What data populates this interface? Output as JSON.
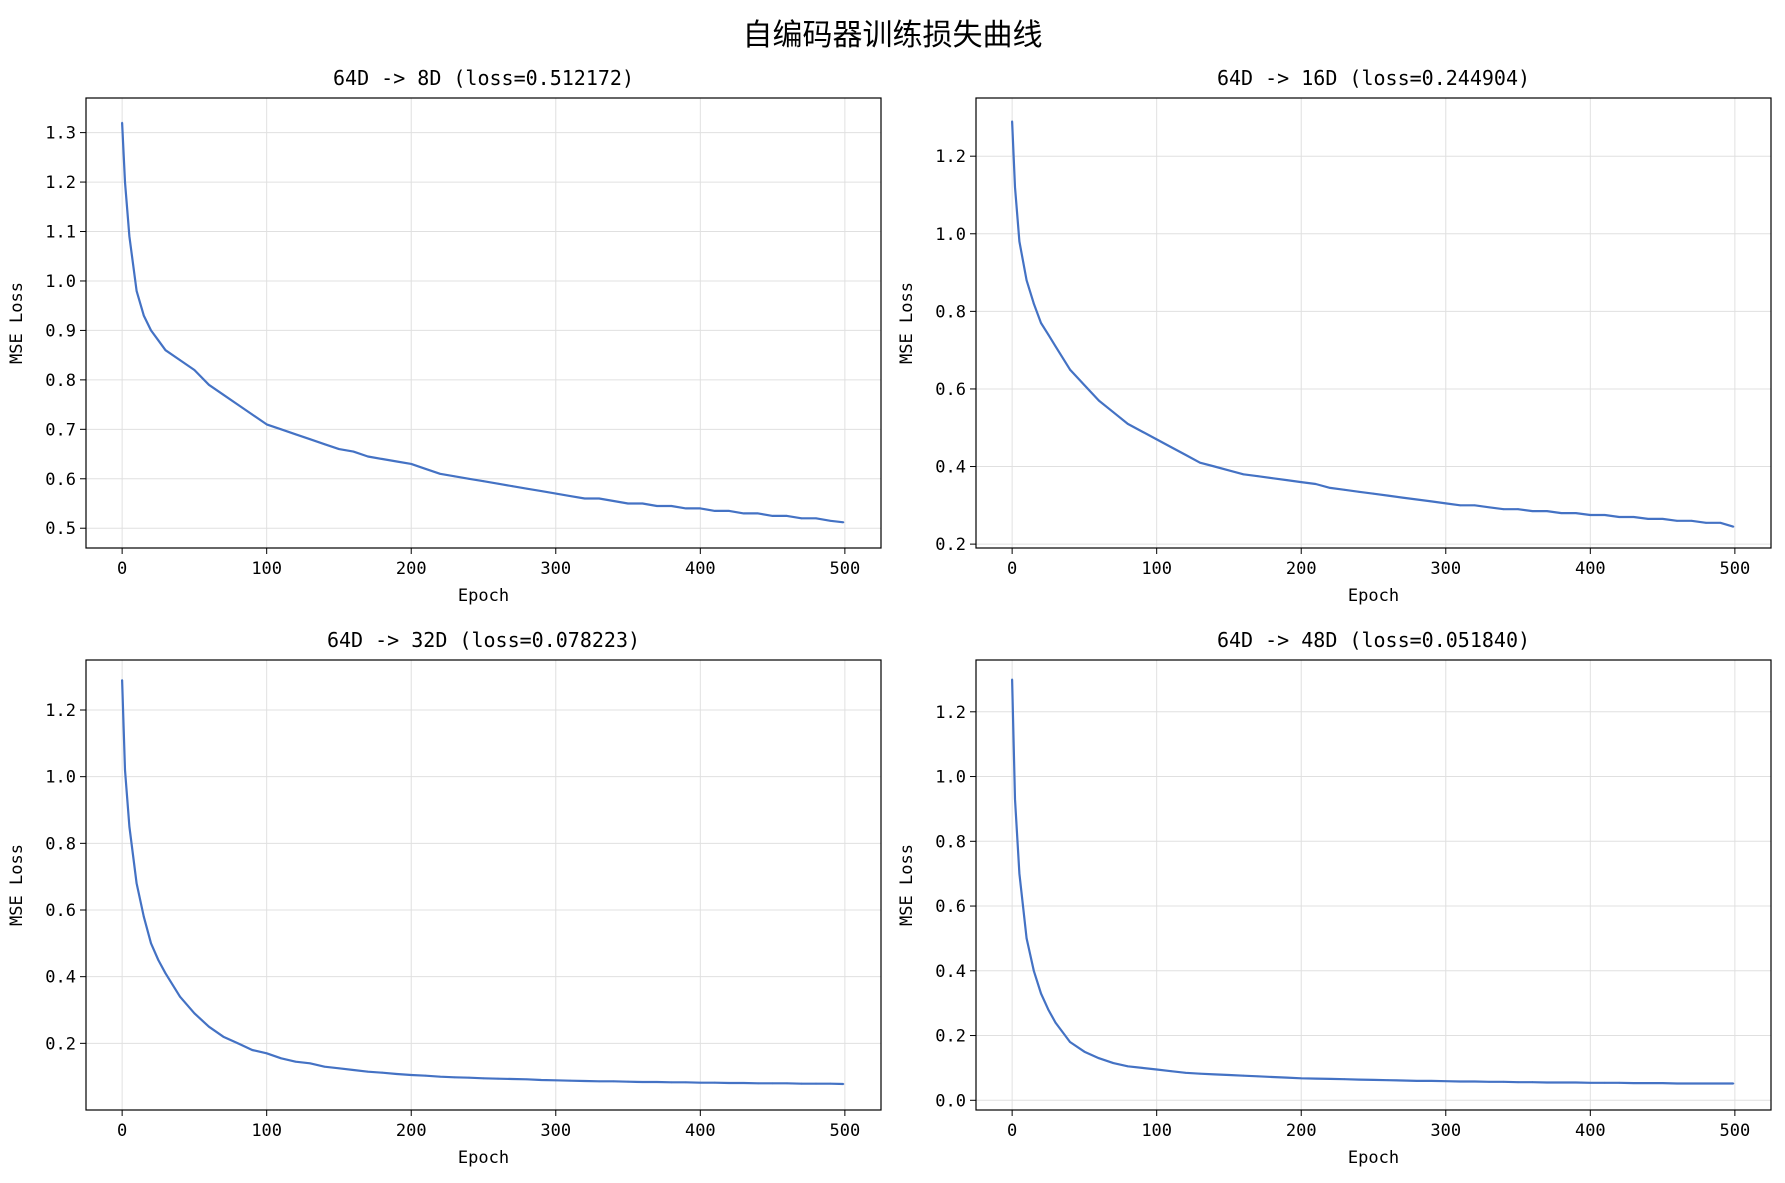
{
  "figure": {
    "title": "自编码器训练损失曲线",
    "line_color": "#4472c4",
    "grid_color": "#e0e0e0"
  },
  "chart_data": [
    {
      "type": "line",
      "title": "64D -> 8D (loss=0.512172)",
      "xlabel": "Epoch",
      "ylabel": "MSE Loss",
      "xlim": [
        -25,
        525
      ],
      "ylim": [
        0.46,
        1.37
      ],
      "xticks": [
        0,
        100,
        200,
        300,
        400,
        500
      ],
      "yticks": [
        0.5,
        0.6,
        0.7,
        0.8,
        0.9,
        1.0,
        1.1,
        1.2,
        1.3
      ],
      "grid": true,
      "series": [
        {
          "x": [
            0,
            2,
            5,
            10,
            15,
            20,
            25,
            30,
            40,
            50,
            60,
            70,
            80,
            90,
            100,
            110,
            120,
            130,
            140,
            150,
            160,
            170,
            180,
            190,
            200,
            210,
            220,
            230,
            240,
            250,
            260,
            270,
            280,
            290,
            300,
            310,
            320,
            330,
            340,
            350,
            360,
            370,
            380,
            390,
            400,
            410,
            420,
            430,
            440,
            450,
            460,
            470,
            480,
            490,
            499
          ],
          "values": [
            1.32,
            1.2,
            1.09,
            0.98,
            0.93,
            0.9,
            0.88,
            0.86,
            0.84,
            0.82,
            0.79,
            0.77,
            0.75,
            0.73,
            0.71,
            0.7,
            0.69,
            0.68,
            0.67,
            0.66,
            0.655,
            0.645,
            0.64,
            0.635,
            0.63,
            0.62,
            0.61,
            0.605,
            0.6,
            0.595,
            0.59,
            0.585,
            0.58,
            0.575,
            0.57,
            0.565,
            0.56,
            0.56,
            0.555,
            0.55,
            0.55,
            0.545,
            0.545,
            0.54,
            0.54,
            0.535,
            0.535,
            0.53,
            0.53,
            0.525,
            0.525,
            0.52,
            0.52,
            0.515,
            0.512
          ]
        }
      ]
    },
    {
      "type": "line",
      "title": "64D -> 16D (loss=0.244904)",
      "xlabel": "Epoch",
      "ylabel": "MSE Loss",
      "xlim": [
        -25,
        525
      ],
      "ylim": [
        0.19,
        1.35
      ],
      "xticks": [
        0,
        100,
        200,
        300,
        400,
        500
      ],
      "yticks": [
        0.2,
        0.4,
        0.6,
        0.8,
        1.0,
        1.2
      ],
      "grid": true,
      "series": [
        {
          "x": [
            0,
            2,
            5,
            10,
            15,
            20,
            25,
            30,
            40,
            50,
            60,
            70,
            80,
            90,
            100,
            110,
            120,
            130,
            140,
            150,
            160,
            170,
            180,
            190,
            200,
            210,
            220,
            230,
            240,
            250,
            260,
            270,
            280,
            290,
            300,
            310,
            320,
            330,
            340,
            350,
            360,
            370,
            380,
            390,
            400,
            410,
            420,
            430,
            440,
            450,
            460,
            470,
            480,
            490,
            499
          ],
          "values": [
            1.29,
            1.12,
            0.98,
            0.88,
            0.82,
            0.77,
            0.74,
            0.71,
            0.65,
            0.61,
            0.57,
            0.54,
            0.51,
            0.49,
            0.47,
            0.45,
            0.43,
            0.41,
            0.4,
            0.39,
            0.38,
            0.375,
            0.37,
            0.365,
            0.36,
            0.355,
            0.345,
            0.34,
            0.335,
            0.33,
            0.325,
            0.32,
            0.315,
            0.31,
            0.305,
            0.3,
            0.3,
            0.295,
            0.29,
            0.29,
            0.285,
            0.285,
            0.28,
            0.28,
            0.275,
            0.275,
            0.27,
            0.27,
            0.265,
            0.265,
            0.26,
            0.26,
            0.255,
            0.255,
            0.245
          ]
        }
      ]
    },
    {
      "type": "line",
      "title": "64D -> 32D (loss=0.078223)",
      "xlabel": "Epoch",
      "ylabel": "MSE Loss",
      "xlim": [
        -25,
        525
      ],
      "ylim": [
        0.0,
        1.35
      ],
      "xticks": [
        0,
        100,
        200,
        300,
        400,
        500
      ],
      "yticks": [
        0.2,
        0.4,
        0.6,
        0.8,
        1.0,
        1.2
      ],
      "grid": true,
      "series": [
        {
          "x": [
            0,
            2,
            5,
            10,
            15,
            20,
            25,
            30,
            40,
            50,
            60,
            70,
            80,
            90,
            100,
            110,
            120,
            130,
            140,
            150,
            160,
            170,
            180,
            190,
            200,
            210,
            220,
            230,
            240,
            250,
            260,
            270,
            280,
            290,
            300,
            310,
            320,
            330,
            340,
            350,
            360,
            370,
            380,
            390,
            400,
            410,
            420,
            430,
            440,
            450,
            460,
            470,
            480,
            490,
            499
          ],
          "values": [
            1.29,
            1.02,
            0.85,
            0.68,
            0.58,
            0.5,
            0.45,
            0.41,
            0.34,
            0.29,
            0.25,
            0.22,
            0.2,
            0.18,
            0.17,
            0.155,
            0.145,
            0.14,
            0.13,
            0.125,
            0.12,
            0.115,
            0.112,
            0.108,
            0.105,
            0.103,
            0.1,
            0.098,
            0.097,
            0.095,
            0.094,
            0.093,
            0.092,
            0.09,
            0.089,
            0.088,
            0.087,
            0.086,
            0.086,
            0.085,
            0.084,
            0.084,
            0.083,
            0.083,
            0.082,
            0.082,
            0.081,
            0.081,
            0.08,
            0.08,
            0.08,
            0.079,
            0.079,
            0.079,
            0.078
          ]
        }
      ]
    },
    {
      "type": "line",
      "title": "64D -> 48D (loss=0.051840)",
      "xlabel": "Epoch",
      "ylabel": "MSE Loss",
      "xlim": [
        -25,
        525
      ],
      "ylim": [
        -0.03,
        1.36
      ],
      "xticks": [
        0,
        100,
        200,
        300,
        400,
        500
      ],
      "yticks": [
        0.0,
        0.2,
        0.4,
        0.6,
        0.8,
        1.0,
        1.2
      ],
      "grid": true,
      "series": [
        {
          "x": [
            0,
            2,
            5,
            10,
            15,
            20,
            25,
            30,
            40,
            50,
            60,
            70,
            80,
            90,
            100,
            110,
            120,
            130,
            140,
            150,
            160,
            170,
            180,
            190,
            200,
            210,
            220,
            230,
            240,
            250,
            260,
            270,
            280,
            290,
            300,
            310,
            320,
            330,
            340,
            350,
            360,
            370,
            380,
            390,
            400,
            410,
            420,
            430,
            440,
            450,
            460,
            470,
            480,
            490,
            499
          ],
          "values": [
            1.3,
            0.93,
            0.7,
            0.5,
            0.4,
            0.33,
            0.28,
            0.24,
            0.18,
            0.15,
            0.13,
            0.115,
            0.105,
            0.1,
            0.095,
            0.09,
            0.085,
            0.082,
            0.08,
            0.078,
            0.076,
            0.074,
            0.072,
            0.07,
            0.068,
            0.067,
            0.066,
            0.065,
            0.064,
            0.063,
            0.062,
            0.061,
            0.06,
            0.06,
            0.059,
            0.058,
            0.058,
            0.057,
            0.057,
            0.056,
            0.056,
            0.055,
            0.055,
            0.055,
            0.054,
            0.054,
            0.054,
            0.053,
            0.053,
            0.053,
            0.052,
            0.052,
            0.052,
            0.052,
            0.0518
          ]
        }
      ]
    }
  ]
}
